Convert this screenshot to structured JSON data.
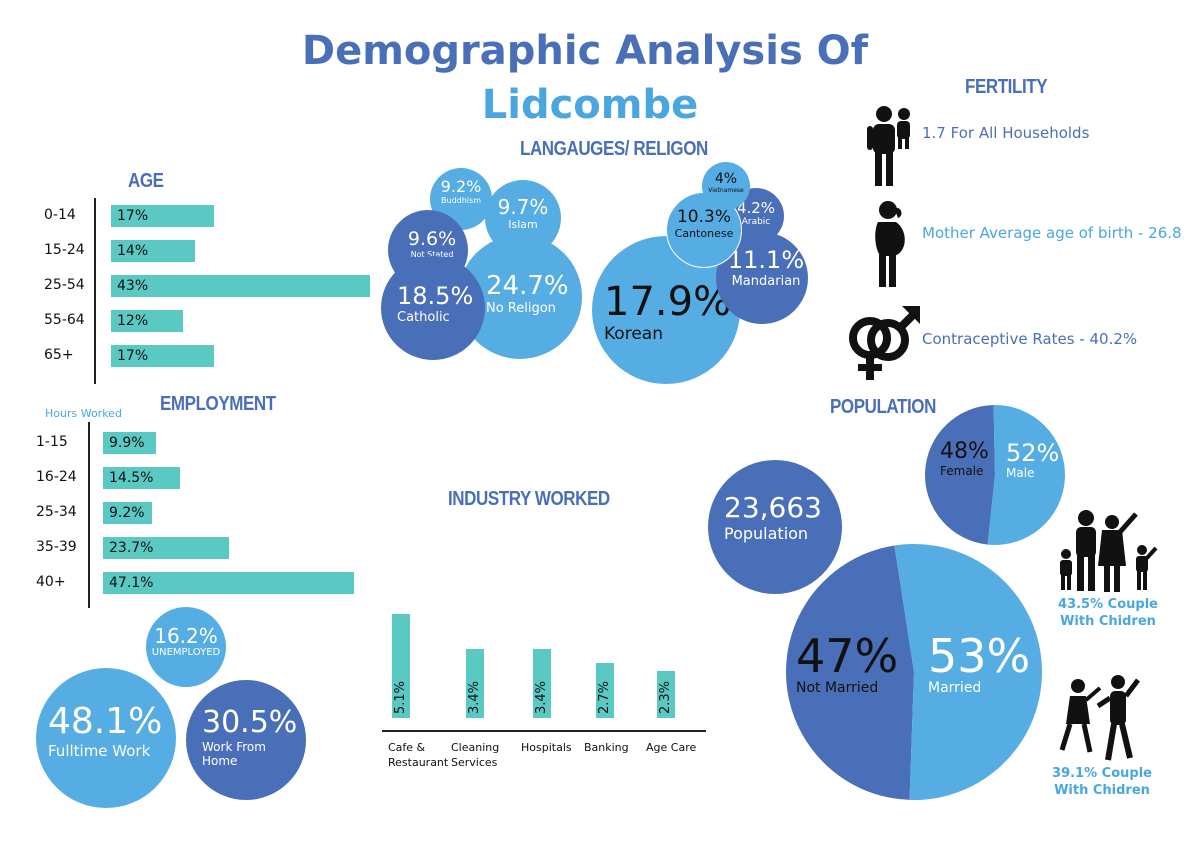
{
  "title": {
    "line1": "Demographic Analysis Of",
    "line2": "Lidcombe"
  },
  "sections": {
    "age": "AGE",
    "employment": "EMPLOYMENT",
    "hours_worked": "Hours Worked",
    "languages": "LANGAUGES/ RELIGON",
    "industry": "INDUSTRY WORKED",
    "fertility": "FERTILITY",
    "population": "POPULATION"
  },
  "fertility": {
    "households": "1.7 For All Households",
    "mother_age": "Mother Average age of birth - 26.8",
    "contraceptive": "Contraceptive Rates - 40.2%"
  },
  "employment_bubbles": {
    "unemployed_value": "16.2%",
    "unemployed_label": "UNEMPLOYED",
    "fulltime_value": "48.1%",
    "fulltime_label": "Fulltime Work",
    "wfh_value": "30.5%",
    "wfh_label1": "Work From",
    "wfh_label2": "Home"
  },
  "religion_bubbles": {
    "buddhism_value": "9.2%",
    "buddhism_label": "Buddhism",
    "islam_value": "9.7%",
    "islam_label": "Islam",
    "notstated_value": "9.6%",
    "notstated_label": "Not Stated",
    "catholic_value": "18.5%",
    "catholic_label": "Catholic",
    "noreligion_value": "24.7%",
    "noreligion_label": "No Religon"
  },
  "language_bubbles": {
    "vietnamese_value": "4%",
    "vietnamese_label": "Vietnamese",
    "cantonese_value": "10.3%",
    "cantonese_label": "Cantonese",
    "arabic_value": "4.2%",
    "arabic_label": "Arabic",
    "mandarin_value": "11.1%",
    "mandarin_label": "Mandarian",
    "korean_value": "17.9%",
    "korean_label": "Korean"
  },
  "population": {
    "count_value": "23,663",
    "count_label": "Population",
    "female_value": "48%",
    "female_label": "Female",
    "male_value": "52%",
    "male_label": "Male",
    "notmarried_value": "47%",
    "notmarried_label": "Not Married",
    "married_value": "53%",
    "married_label": "Married",
    "couple_children_1a": "43.5% Couple",
    "couple_children_1b": "With Chidren",
    "couple_children_2a": "39.1% Couple",
    "couple_children_2b": "With Chidren"
  },
  "colors": {
    "dark_blue": "#4a6fb9",
    "light_blue": "#55ade3",
    "teal": "#5ac8c3"
  },
  "chart_data": [
    {
      "type": "bar",
      "title": "AGE",
      "categories": [
        "0-14",
        "15-24",
        "25-54",
        "55-64",
        "65+"
      ],
      "values": [
        17,
        14,
        43,
        12,
        17
      ],
      "labels": [
        "17%",
        "14%",
        "43%",
        "12%",
        "17%"
      ],
      "orientation": "horizontal"
    },
    {
      "type": "bar",
      "title": "EMPLOYMENT",
      "subtitle": "Hours Worked",
      "categories": [
        "1-15",
        "16-24",
        "25-34",
        "35-39",
        "40+"
      ],
      "values": [
        9.9,
        14.5,
        9.2,
        23.7,
        47.1
      ],
      "labels": [
        "9.9%",
        "14.5%",
        "9.2%",
        "23.7%",
        "47.1%"
      ],
      "orientation": "horizontal"
    },
    {
      "type": "bar",
      "title": "INDUSTRY WORKED",
      "categories": [
        "Cafe & Restaurant",
        "Cleaning Services",
        "Hospitals",
        "Banking",
        "Age Care"
      ],
      "category_lines": [
        [
          "Cafe &",
          "Restaurant"
        ],
        [
          "Cleaning",
          "Services"
        ],
        [
          "Hospitals"
        ],
        [
          "Banking"
        ],
        [
          "Age Care"
        ]
      ],
      "values": [
        5.1,
        3.4,
        3.4,
        2.7,
        2.3
      ],
      "labels": [
        "5.1%",
        "3.4%",
        "3.4%",
        "2.7%",
        "2.3%"
      ],
      "orientation": "vertical"
    },
    {
      "type": "pie",
      "title": "POPULATION",
      "slices": [
        {
          "label": "Female",
          "value": 48
        },
        {
          "label": "Male",
          "value": 52
        }
      ]
    },
    {
      "type": "pie",
      "slices": [
        {
          "label": "Not Married",
          "value": 47
        },
        {
          "label": "Married",
          "value": 53
        }
      ]
    }
  ]
}
